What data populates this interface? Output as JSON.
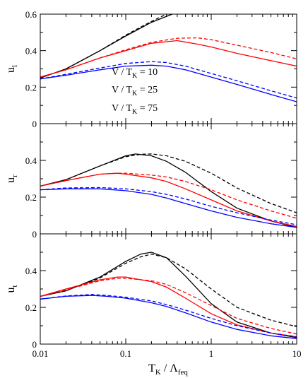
{
  "figure": {
    "xlabel_main": "T",
    "xlabel_sub1": "K",
    "xlabel_mid": " / Λ",
    "xlabel_sub2": "feq",
    "x_tick_labels": [
      "0.01",
      "0.1",
      "1",
      "10"
    ],
    "legend": [
      {
        "pre": "V / T",
        "sub": "K",
        "post": " = 10"
      },
      {
        "pre": "V / T",
        "sub": "K",
        "post": " = 25"
      },
      {
        "pre": "V / T",
        "sub": "K",
        "post": " = 75"
      }
    ]
  },
  "colors": {
    "V10": "#000000",
    "V25": "#ff0000",
    "V75": "#0000ff"
  },
  "chart_data": [
    {
      "type": "line",
      "panel": "top",
      "ylabel_main": "u",
      "ylabel_sub": "l",
      "xscale": "log",
      "xlim": [
        0.01,
        10
      ],
      "ylim": [
        0,
        0.6
      ],
      "y_ticks": [
        0,
        0.2,
        0.4,
        0.6
      ],
      "y_tick_labels": [
        "0",
        "0.2",
        "0.4",
        "0.6"
      ],
      "series": [
        {
          "color_key": "V10",
          "style": "solid",
          "points": [
            [
              0.01,
              0.25
            ],
            [
              0.02,
              0.3
            ],
            [
              0.05,
              0.4
            ],
            [
              0.1,
              0.48
            ],
            [
              0.2,
              0.555
            ],
            [
              0.35,
              0.6
            ]
          ]
        },
        {
          "color_key": "V10",
          "style": "dashed",
          "points": [
            [
              0.01,
              0.25
            ],
            [
              0.02,
              0.3
            ],
            [
              0.05,
              0.4
            ],
            [
              0.1,
              0.485
            ],
            [
              0.2,
              0.56
            ],
            [
              0.3,
              0.6
            ]
          ]
        },
        {
          "color_key": "V25",
          "style": "solid",
          "points": [
            [
              0.01,
              0.255
            ],
            [
              0.02,
              0.295
            ],
            [
              0.05,
              0.36
            ],
            [
              0.1,
              0.4
            ],
            [
              0.2,
              0.44
            ],
            [
              0.4,
              0.455
            ],
            [
              0.7,
              0.435
            ],
            [
              1,
              0.42
            ],
            [
              2,
              0.385
            ],
            [
              5,
              0.345
            ],
            [
              10,
              0.315
            ]
          ]
        },
        {
          "color_key": "V25",
          "style": "dashed",
          "points": [
            [
              0.01,
              0.255
            ],
            [
              0.02,
              0.295
            ],
            [
              0.05,
              0.36
            ],
            [
              0.1,
              0.405
            ],
            [
              0.2,
              0.445
            ],
            [
              0.4,
              0.468
            ],
            [
              0.7,
              0.47
            ],
            [
              1,
              0.46
            ],
            [
              2,
              0.43
            ],
            [
              5,
              0.39
            ],
            [
              10,
              0.355
            ]
          ]
        },
        {
          "color_key": "V75",
          "style": "solid",
          "points": [
            [
              0.01,
              0.245
            ],
            [
              0.02,
              0.265
            ],
            [
              0.05,
              0.295
            ],
            [
              0.1,
              0.315
            ],
            [
              0.2,
              0.32
            ],
            [
              0.3,
              0.315
            ],
            [
              0.5,
              0.295
            ],
            [
              1,
              0.255
            ],
            [
              2,
              0.215
            ],
            [
              5,
              0.16
            ],
            [
              10,
              0.12
            ]
          ]
        },
        {
          "color_key": "V75",
          "style": "dashed",
          "points": [
            [
              0.01,
              0.245
            ],
            [
              0.02,
              0.27
            ],
            [
              0.05,
              0.305
            ],
            [
              0.1,
              0.33
            ],
            [
              0.2,
              0.34
            ],
            [
              0.3,
              0.335
            ],
            [
              0.5,
              0.315
            ],
            [
              1,
              0.275
            ],
            [
              2,
              0.235
            ],
            [
              5,
              0.18
            ],
            [
              10,
              0.14
            ]
          ]
        }
      ]
    },
    {
      "type": "line",
      "panel": "middle",
      "ylabel_main": "u",
      "ylabel_sub": "r",
      "xscale": "log",
      "xlim": [
        0.01,
        10
      ],
      "ylim": [
        0,
        0.6
      ],
      "y_ticks": [
        0,
        0.2,
        0.4
      ],
      "y_tick_labels": [
        "0",
        "0.2",
        "0.4"
      ],
      "series": [
        {
          "color_key": "V10",
          "style": "solid",
          "points": [
            [
              0.01,
              0.26
            ],
            [
              0.02,
              0.295
            ],
            [
              0.05,
              0.37
            ],
            [
              0.1,
              0.425
            ],
            [
              0.13,
              0.435
            ],
            [
              0.2,
              0.425
            ],
            [
              0.3,
              0.395
            ],
            [
              0.5,
              0.335
            ],
            [
              1,
              0.23
            ],
            [
              2,
              0.14
            ],
            [
              5,
              0.07
            ],
            [
              10,
              0.035
            ]
          ]
        },
        {
          "color_key": "V10",
          "style": "dashed",
          "points": [
            [
              0.01,
              0.26
            ],
            [
              0.02,
              0.295
            ],
            [
              0.05,
              0.37
            ],
            [
              0.1,
              0.42
            ],
            [
              0.15,
              0.433
            ],
            [
              0.2,
              0.435
            ],
            [
              0.3,
              0.425
            ],
            [
              0.5,
              0.395
            ],
            [
              1,
              0.33
            ],
            [
              2,
              0.25
            ],
            [
              5,
              0.165
            ],
            [
              10,
              0.115
            ]
          ]
        },
        {
          "color_key": "V25",
          "style": "solid",
          "points": [
            [
              0.01,
              0.26
            ],
            [
              0.02,
              0.29
            ],
            [
              0.05,
              0.325
            ],
            [
              0.08,
              0.33
            ],
            [
              0.1,
              0.325
            ],
            [
              0.2,
              0.305
            ],
            [
              0.3,
              0.285
            ],
            [
              0.5,
              0.245
            ],
            [
              1,
              0.185
            ],
            [
              2,
              0.125
            ],
            [
              5,
              0.07
            ],
            [
              10,
              0.04
            ]
          ]
        },
        {
          "color_key": "V25",
          "style": "dashed",
          "points": [
            [
              0.01,
              0.26
            ],
            [
              0.02,
              0.29
            ],
            [
              0.05,
              0.325
            ],
            [
              0.08,
              0.33
            ],
            [
              0.1,
              0.33
            ],
            [
              0.2,
              0.32
            ],
            [
              0.3,
              0.31
            ],
            [
              0.5,
              0.285
            ],
            [
              1,
              0.24
            ],
            [
              2,
              0.185
            ],
            [
              5,
              0.125
            ],
            [
              10,
              0.085
            ]
          ]
        },
        {
          "color_key": "V75",
          "style": "solid",
          "points": [
            [
              0.01,
              0.24
            ],
            [
              0.02,
              0.245
            ],
            [
              0.05,
              0.245
            ],
            [
              0.1,
              0.235
            ],
            [
              0.2,
              0.215
            ],
            [
              0.3,
              0.195
            ],
            [
              0.5,
              0.165
            ],
            [
              1,
              0.125
            ],
            [
              2,
              0.09
            ],
            [
              5,
              0.055
            ],
            [
              10,
              0.035
            ]
          ]
        },
        {
          "color_key": "V75",
          "style": "dashed",
          "points": [
            [
              0.01,
              0.24
            ],
            [
              0.02,
              0.25
            ],
            [
              0.05,
              0.252
            ],
            [
              0.1,
              0.245
            ],
            [
              0.2,
              0.23
            ],
            [
              0.3,
              0.215
            ],
            [
              0.5,
              0.19
            ],
            [
              1,
              0.15
            ],
            [
              2,
              0.115
            ],
            [
              5,
              0.075
            ],
            [
              10,
              0.05
            ]
          ]
        }
      ]
    },
    {
      "type": "line",
      "panel": "bottom",
      "ylabel_main": "u",
      "ylabel_sub": "t",
      "xscale": "log",
      "xlim": [
        0.01,
        10
      ],
      "ylim": [
        0,
        0.6
      ],
      "y_ticks": [
        0,
        0.2,
        0.4
      ],
      "y_tick_labels": [
        "0",
        "0.2",
        "0.4"
      ],
      "series": [
        {
          "color_key": "V10",
          "style": "solid",
          "points": [
            [
              0.01,
              0.26
            ],
            [
              0.02,
              0.29
            ],
            [
              0.05,
              0.365
            ],
            [
              0.1,
              0.45
            ],
            [
              0.15,
              0.49
            ],
            [
              0.2,
              0.5
            ],
            [
              0.3,
              0.47
            ],
            [
              0.5,
              0.37
            ],
            [
              1,
              0.22
            ],
            [
              2,
              0.12
            ],
            [
              5,
              0.06
            ],
            [
              10,
              0.035
            ]
          ]
        },
        {
          "color_key": "V10",
          "style": "dashed",
          "points": [
            [
              0.01,
              0.26
            ],
            [
              0.02,
              0.29
            ],
            [
              0.05,
              0.36
            ],
            [
              0.1,
              0.44
            ],
            [
              0.15,
              0.475
            ],
            [
              0.2,
              0.49
            ],
            [
              0.3,
              0.47
            ],
            [
              0.5,
              0.41
            ],
            [
              1,
              0.3
            ],
            [
              2,
              0.2
            ],
            [
              5,
              0.13
            ],
            [
              10,
              0.095
            ]
          ]
        },
        {
          "color_key": "V25",
          "style": "solid",
          "points": [
            [
              0.01,
              0.26
            ],
            [
              0.02,
              0.3
            ],
            [
              0.05,
              0.35
            ],
            [
              0.08,
              0.365
            ],
            [
              0.1,
              0.365
            ],
            [
              0.2,
              0.34
            ],
            [
              0.3,
              0.31
            ],
            [
              0.5,
              0.25
            ],
            [
              1,
              0.165
            ],
            [
              2,
              0.105
            ],
            [
              5,
              0.06
            ],
            [
              10,
              0.04
            ]
          ]
        },
        {
          "color_key": "V25",
          "style": "dashed",
          "points": [
            [
              0.01,
              0.26
            ],
            [
              0.02,
              0.295
            ],
            [
              0.05,
              0.345
            ],
            [
              0.08,
              0.358
            ],
            [
              0.1,
              0.358
            ],
            [
              0.2,
              0.345
            ],
            [
              0.3,
              0.325
            ],
            [
              0.5,
              0.28
            ],
            [
              1,
              0.21
            ],
            [
              2,
              0.14
            ],
            [
              5,
              0.085
            ],
            [
              10,
              0.055
            ]
          ]
        },
        {
          "color_key": "V75",
          "style": "solid",
          "points": [
            [
              0.01,
              0.245
            ],
            [
              0.02,
              0.26
            ],
            [
              0.04,
              0.265
            ],
            [
              0.06,
              0.26
            ],
            [
              0.1,
              0.25
            ],
            [
              0.2,
              0.225
            ],
            [
              0.3,
              0.205
            ],
            [
              0.5,
              0.17
            ],
            [
              1,
              0.12
            ],
            [
              2,
              0.08
            ],
            [
              5,
              0.045
            ],
            [
              10,
              0.03
            ]
          ]
        },
        {
          "color_key": "V75",
          "style": "dashed",
          "points": [
            [
              0.01,
              0.245
            ],
            [
              0.02,
              0.262
            ],
            [
              0.04,
              0.27
            ],
            [
              0.06,
              0.265
            ],
            [
              0.1,
              0.255
            ],
            [
              0.2,
              0.235
            ],
            [
              0.3,
              0.215
            ],
            [
              0.5,
              0.185
            ],
            [
              1,
              0.14
            ],
            [
              2,
              0.1
            ],
            [
              5,
              0.06
            ],
            [
              10,
              0.04
            ]
          ]
        }
      ]
    }
  ]
}
